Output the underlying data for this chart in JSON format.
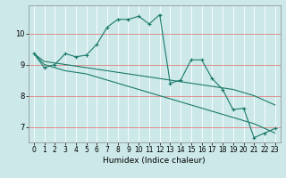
{
  "xlabel": "Humidex (Indice chaleur)",
  "bg_color": "#cce8e8",
  "grid_color": "#f0c0c0",
  "line_color": "#1a7a6a",
  "xlim": [
    -0.5,
    23.5
  ],
  "ylim": [
    6.5,
    10.9
  ],
  "yticks": [
    7,
    8,
    9,
    10
  ],
  "xticks": [
    0,
    1,
    2,
    3,
    4,
    5,
    6,
    7,
    8,
    9,
    10,
    11,
    12,
    13,
    14,
    15,
    16,
    17,
    18,
    19,
    20,
    21,
    22,
    23
  ],
  "series1_x": [
    0,
    1,
    2,
    3,
    4,
    5,
    6,
    7,
    8,
    9,
    10,
    11,
    12,
    13,
    14,
    15,
    16,
    17,
    18,
    19,
    20,
    21,
    22,
    23
  ],
  "series1_y": [
    9.35,
    8.9,
    9.0,
    9.35,
    9.25,
    9.3,
    9.65,
    10.2,
    10.45,
    10.45,
    10.55,
    10.3,
    10.6,
    8.4,
    8.5,
    9.15,
    9.15,
    8.55,
    8.2,
    7.55,
    7.6,
    6.65,
    6.8,
    6.95
  ],
  "series2_x": [
    0,
    1,
    2,
    3,
    4,
    5,
    6,
    7,
    8,
    9,
    10,
    11,
    12,
    13,
    14,
    15,
    16,
    17,
    18,
    19,
    20,
    21,
    22,
    23
  ],
  "series2_y": [
    9.35,
    9.1,
    9.05,
    9.0,
    8.95,
    8.9,
    8.85,
    8.8,
    8.75,
    8.7,
    8.65,
    8.6,
    8.55,
    8.5,
    8.45,
    8.4,
    8.35,
    8.3,
    8.25,
    8.2,
    8.1,
    8.0,
    7.85,
    7.7
  ],
  "series3_x": [
    0,
    1,
    2,
    3,
    4,
    5,
    6,
    7,
    8,
    9,
    10,
    11,
    12,
    13,
    14,
    15,
    16,
    17,
    18,
    19,
    20,
    21,
    22,
    23
  ],
  "series3_y": [
    9.35,
    9.0,
    8.9,
    8.8,
    8.75,
    8.7,
    8.6,
    8.5,
    8.4,
    8.3,
    8.2,
    8.1,
    8.0,
    7.9,
    7.8,
    7.7,
    7.6,
    7.5,
    7.4,
    7.3,
    7.2,
    7.1,
    6.95,
    6.8
  ]
}
